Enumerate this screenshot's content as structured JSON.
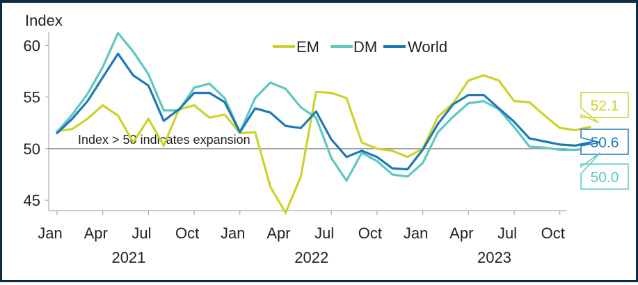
{
  "chart_data": {
    "type": "line",
    "ylabel": "Index",
    "ylim": [
      44,
      61.3
    ],
    "yticks": [
      45,
      50,
      55,
      60
    ],
    "xlabels": [
      "Jan",
      "Apr",
      "Jul",
      "Oct",
      "Jan",
      "Apr",
      "Jul",
      "Oct",
      "Jan",
      "Apr",
      "Jul",
      "Oct"
    ],
    "years": [
      "2021",
      "2022",
      "2023"
    ],
    "x": [
      "2021-01",
      "2021-02",
      "2021-03",
      "2021-04",
      "2021-05",
      "2021-06",
      "2021-07",
      "2021-08",
      "2021-09",
      "2021-10",
      "2021-11",
      "2021-12",
      "2022-01",
      "2022-02",
      "2022-03",
      "2022-04",
      "2022-05",
      "2022-06",
      "2022-07",
      "2022-08",
      "2022-09",
      "2022-10",
      "2022-11",
      "2022-12",
      "2023-01",
      "2023-02",
      "2023-03",
      "2023-04",
      "2023-05",
      "2023-06",
      "2023-07",
      "2023-08",
      "2023-09",
      "2023-10",
      "2023-11",
      "2023-12"
    ],
    "reference_line": {
      "value": 50,
      "label": "Index > 50 indicates expansion"
    },
    "series": [
      {
        "name": "EM",
        "color": "#ccd32b",
        "values": [
          51.7,
          51.9,
          52.9,
          54.2,
          53.2,
          50.6,
          52.9,
          50.3,
          53.8,
          54.2,
          53.0,
          53.3,
          51.5,
          51.6,
          46.3,
          43.8,
          47.3,
          55.5,
          55.4,
          54.9,
          50.6,
          50.0,
          49.8,
          49.2,
          50.0,
          53.1,
          54.4,
          56.6,
          57.1,
          56.6,
          54.6,
          54.5,
          53.2,
          52.0,
          51.8,
          52.1
        ]
      },
      {
        "name": "DM",
        "color": "#5ec7c0",
        "values": [
          51.6,
          53.3,
          55.3,
          57.9,
          61.2,
          59.4,
          57.2,
          53.7,
          53.7,
          55.9,
          56.3,
          54.9,
          51.6,
          54.9,
          56.4,
          55.8,
          54.0,
          53.0,
          49.1,
          46.9,
          49.6,
          48.8,
          47.5,
          47.3,
          48.6,
          51.6,
          53.1,
          54.4,
          54.6,
          53.8,
          52.1,
          50.2,
          50.1,
          49.9,
          49.9,
          50.0
        ]
      },
      {
        "name": "World",
        "color": "#1f78b4",
        "values": [
          51.5,
          52.9,
          54.6,
          56.9,
          59.2,
          57.1,
          56.1,
          52.7,
          53.8,
          55.4,
          55.4,
          54.5,
          51.6,
          53.9,
          53.5,
          52.2,
          52.0,
          53.6,
          50.9,
          49.2,
          49.8,
          49.2,
          48.1,
          48.0,
          49.9,
          52.4,
          54.3,
          55.2,
          55.2,
          53.9,
          52.6,
          51.0,
          50.7,
          50.4,
          50.3,
          50.6
        ]
      }
    ],
    "end_labels": [
      {
        "text": "52.1",
        "color": "#ccd32b"
      },
      {
        "text": "50.6",
        "color": "#1f78b4"
      },
      {
        "text": "50.0",
        "color": "#5ec7c0"
      }
    ],
    "legend": {
      "placement": "top-center"
    },
    "grid": false
  }
}
